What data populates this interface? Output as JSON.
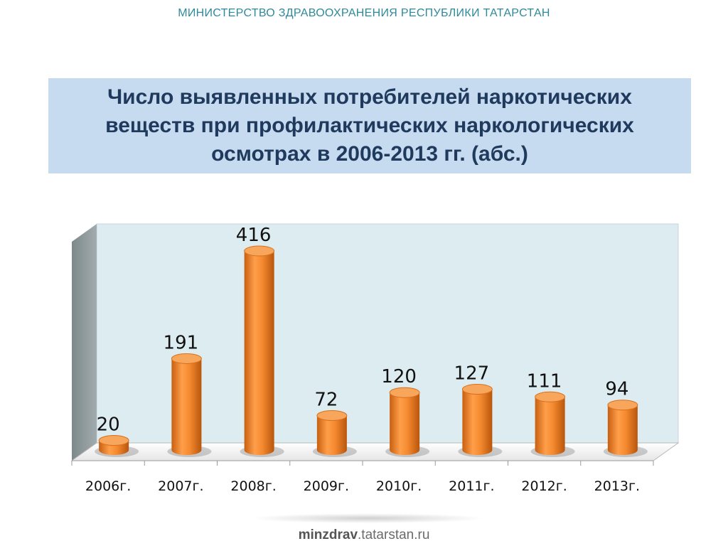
{
  "header": {
    "ministry": "МИНИСТЕРСТВО ЗДРАВООХРАНЕНИЯ РЕСПУБЛИКИ ТАТАРСТАН"
  },
  "title": "Число выявленных потребителей наркотических веществ при профилактических наркологических осмотрах в 2006-2013 гг. (абс.)",
  "footer": {
    "bold": "minzdrav",
    "rest": ".tatarstan.ru"
  },
  "colors": {
    "title_bg": "#c7dbf0",
    "plot_bg": "#dcecf0",
    "side_wall": "#8a9699",
    "bar_orange": "#f08a2c"
  },
  "chart_data": {
    "type": "bar",
    "categories": [
      "2006г.",
      "2007г.",
      "2008г.",
      "2009г.",
      "2010г.",
      "2011г.",
      "2012г.",
      "2013г."
    ],
    "values": [
      20,
      191,
      416,
      72,
      120,
      127,
      111,
      94
    ],
    "data_labels": [
      "20",
      "191",
      "416",
      "72",
      "120",
      "127",
      "111",
      "94"
    ],
    "ylim": [
      0,
      450
    ],
    "grid": false,
    "legend": "none",
    "style": "3d-cylinder"
  }
}
